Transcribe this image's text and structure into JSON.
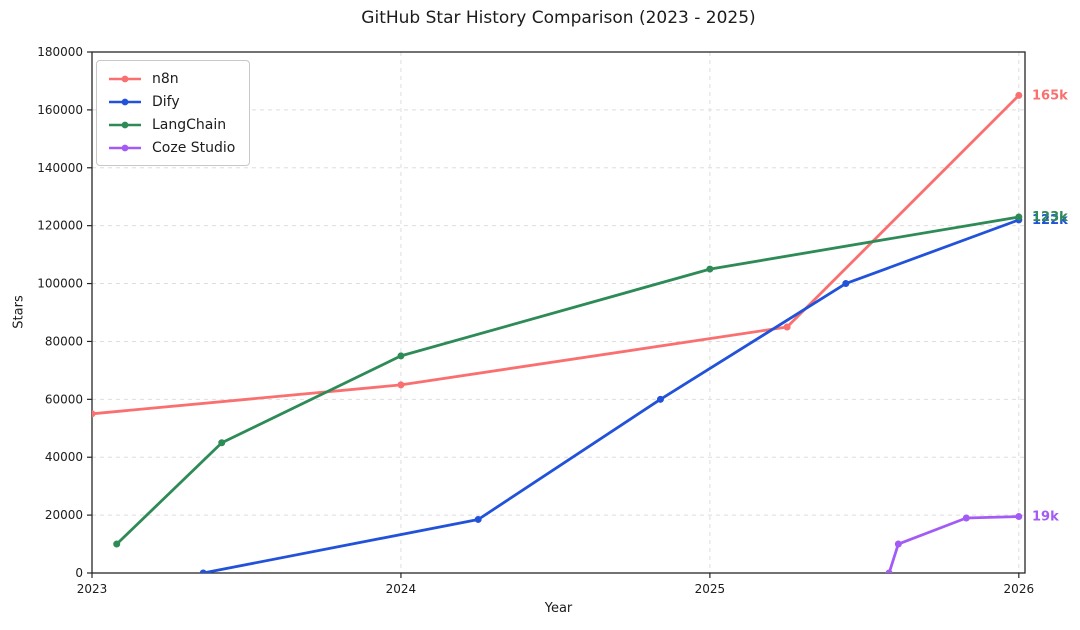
{
  "chart_data": {
    "type": "line",
    "title": "GitHub Star History Comparison (2023 - 2025)",
    "xlabel": "Year",
    "ylabel": "Stars",
    "xlim": [
      2023,
      2026.02
    ],
    "ylim": [
      0,
      180000
    ],
    "x_ticks": [
      2023,
      2024,
      2025,
      2026
    ],
    "y_ticks": [
      0,
      20000,
      40000,
      60000,
      80000,
      100000,
      120000,
      140000,
      160000,
      180000
    ],
    "grid": true,
    "legend_position": "upper-left",
    "series": [
      {
        "name": "n8n",
        "color": "#fa6f6f",
        "end_label": "165k",
        "points": [
          [
            2023.0,
            55000
          ],
          [
            2024.0,
            65000
          ],
          [
            2025.25,
            85000
          ],
          [
            2026.0,
            165000
          ]
        ]
      },
      {
        "name": "Dify",
        "color": "#2152d9",
        "end_label": "122k",
        "points": [
          [
            2023.36,
            0
          ],
          [
            2024.25,
            18500
          ],
          [
            2024.84,
            60000
          ],
          [
            2025.44,
            100000
          ],
          [
            2026.0,
            122000
          ]
        ]
      },
      {
        "name": "LangChain",
        "color": "#2e8b57",
        "end_label": "123k",
        "points": [
          [
            2023.08,
            10000
          ],
          [
            2023.42,
            45000
          ],
          [
            2024.0,
            75000
          ],
          [
            2025.0,
            105000
          ],
          [
            2026.0,
            123000
          ]
        ]
      },
      {
        "name": "Coze Studio",
        "color": "#a35bf5",
        "end_label": "19k",
        "points": [
          [
            2025.58,
            0
          ],
          [
            2025.61,
            10000
          ],
          [
            2025.83,
            19000
          ],
          [
            2026.0,
            19500
          ]
        ]
      }
    ]
  },
  "colors": {
    "grid": "#dedede",
    "spine": "#262626",
    "text": "#1c1c1c"
  }
}
